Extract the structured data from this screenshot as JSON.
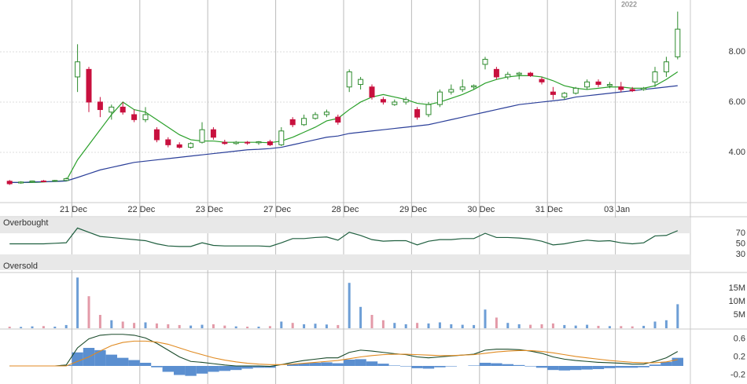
{
  "chart_data": [
    {
      "type": "candlestick",
      "annotation": "2022",
      "open": [
        2.85,
        2.78,
        2.82,
        2.86,
        2.85,
        2.88,
        7.0,
        7.3,
        6.0,
        5.6,
        5.8,
        5.5,
        5.3,
        4.9,
        4.5,
        4.3,
        4.2,
        4.4,
        4.9,
        4.4,
        4.35,
        4.4,
        4.38,
        4.42,
        4.3,
        5.3,
        5.1,
        5.35,
        5.5,
        5.4,
        6.6,
        6.7,
        6.6,
        6.1,
        5.9,
        6.0,
        5.7,
        5.5,
        5.9,
        6.4,
        6.5,
        6.6,
        7.5,
        7.3,
        7.0,
        7.1,
        7.15,
        6.9,
        6.4,
        6.2,
        6.35,
        6.6,
        6.8,
        6.65,
        6.6,
        6.5,
        6.5,
        6.8,
        7.2,
        7.8
      ],
      "high": [
        2.9,
        2.85,
        2.88,
        2.9,
        2.9,
        3.0,
        8.3,
        7.4,
        6.2,
        5.9,
        6.0,
        5.7,
        5.8,
        5.0,
        4.6,
        4.4,
        4.4,
        5.2,
        5.0,
        4.5,
        4.45,
        4.45,
        4.45,
        4.5,
        5.0,
        5.4,
        5.5,
        5.6,
        5.7,
        5.5,
        7.3,
        7.0,
        6.7,
        6.2,
        6.1,
        6.2,
        5.8,
        6.0,
        6.5,
        6.7,
        6.9,
        6.7,
        7.8,
        7.4,
        7.2,
        7.2,
        7.2,
        7.0,
        6.6,
        6.4,
        6.6,
        6.9,
        6.9,
        6.8,
        6.8,
        6.6,
        6.6,
        7.4,
        7.8,
        9.6
      ],
      "low": [
        2.7,
        2.75,
        2.8,
        2.82,
        2.83,
        2.85,
        6.4,
        5.6,
        5.4,
        5.3,
        5.5,
        5.2,
        5.2,
        4.4,
        4.2,
        4.15,
        4.15,
        4.35,
        4.5,
        4.3,
        4.3,
        4.3,
        4.3,
        4.25,
        4.25,
        5.0,
        5.05,
        5.3,
        5.4,
        5.1,
        6.4,
        6.5,
        6.1,
        5.9,
        5.85,
        5.9,
        5.3,
        5.4,
        5.8,
        6.3,
        6.4,
        6.5,
        7.3,
        6.9,
        6.9,
        6.9,
        7.0,
        6.7,
        6.1,
        6.1,
        6.3,
        6.5,
        6.6,
        6.55,
        6.4,
        6.4,
        6.45,
        6.6,
        7.0,
        7.7
      ],
      "close": [
        2.75,
        2.82,
        2.86,
        2.85,
        2.88,
        2.95,
        7.6,
        6.0,
        5.7,
        5.8,
        5.6,
        5.3,
        5.5,
        4.5,
        4.3,
        4.2,
        4.35,
        4.9,
        4.6,
        4.35,
        4.4,
        4.38,
        4.42,
        4.3,
        4.85,
        5.1,
        5.35,
        5.5,
        5.6,
        5.2,
        7.2,
        6.9,
        6.2,
        6.0,
        6.0,
        6.1,
        5.4,
        5.9,
        6.4,
        6.5,
        6.6,
        6.65,
        7.7,
        7.0,
        7.1,
        7.15,
        7.05,
        6.8,
        6.3,
        6.35,
        6.55,
        6.8,
        6.7,
        6.7,
        6.5,
        6.45,
        6.55,
        7.2,
        7.6,
        8.9
      ],
      "up_color": "#2e8b2e",
      "down_color": "#c8103e",
      "series": [
        {
          "color": "#2aa02a",
          "values": [
            2.8,
            2.8,
            2.8,
            2.82,
            2.85,
            2.87,
            3.7,
            4.3,
            4.9,
            5.5,
            6.0,
            5.7,
            5.6,
            5.3,
            5.0,
            4.7,
            4.5,
            4.45,
            4.45,
            4.4,
            4.4,
            4.4,
            4.4,
            4.38,
            4.45,
            4.6,
            4.8,
            5.0,
            5.25,
            5.35,
            5.7,
            6.0,
            6.2,
            6.3,
            6.2,
            6.1,
            5.95,
            5.9,
            6.0,
            6.15,
            6.3,
            6.5,
            6.75,
            6.9,
            7.0,
            7.05,
            7.05,
            7.0,
            6.85,
            6.65,
            6.55,
            6.5,
            6.55,
            6.6,
            6.6,
            6.55,
            6.55,
            6.65,
            6.9,
            7.2
          ]
        },
        {
          "color": "#2b3f99",
          "values": [
            2.8,
            2.8,
            2.82,
            2.83,
            2.84,
            2.86,
            3.0,
            3.15,
            3.3,
            3.4,
            3.5,
            3.6,
            3.65,
            3.7,
            3.75,
            3.8,
            3.85,
            3.9,
            3.95,
            4.0,
            4.05,
            4.1,
            4.12,
            4.15,
            4.2,
            4.3,
            4.4,
            4.5,
            4.6,
            4.65,
            4.75,
            4.8,
            4.85,
            4.9,
            4.95,
            5.0,
            5.05,
            5.1,
            5.2,
            5.3,
            5.4,
            5.5,
            5.6,
            5.7,
            5.8,
            5.9,
            5.95,
            6.0,
            6.05,
            6.1,
            6.2,
            6.25,
            6.3,
            6.35,
            6.4,
            6.45,
            6.5,
            6.55,
            6.6,
            6.65
          ]
        }
      ],
      "xlim": [
        -0.5,
        59.5
      ],
      "xticks": [
        {
          "value": 5.5,
          "label": "21 Dec"
        },
        {
          "value": 11.5,
          "label": "22 Dec"
        },
        {
          "value": 17.5,
          "label": "23 Dec"
        },
        {
          "value": 23.5,
          "label": "27 Dec"
        },
        {
          "value": 29.5,
          "label": "28 Dec"
        },
        {
          "value": 35.5,
          "label": "29 Dec"
        },
        {
          "value": 41.5,
          "label": "30 Dec"
        },
        {
          "value": 47.5,
          "label": "31 Dec"
        },
        {
          "value": 53.5,
          "label": "03 Jan"
        }
      ],
      "ylim": [
        2,
        10.06
      ],
      "yticks": [
        {
          "value": 4,
          "label": "4.00"
        },
        {
          "value": 6,
          "label": "6.00"
        },
        {
          "value": 8,
          "label": "8.00"
        }
      ]
    },
    {
      "type": "line",
      "bands": [
        {
          "label": "Overbought",
          "range": [
            70,
            100
          ]
        },
        {
          "label": "Oversold",
          "range": [
            0,
            30
          ]
        }
      ],
      "series": [
        {
          "color": "#1f5f3f",
          "values": [
            50,
            50,
            50,
            50,
            51,
            52,
            80,
            72,
            64,
            62,
            60,
            58,
            56,
            50,
            46,
            45,
            45,
            52,
            47,
            46,
            46,
            46,
            46,
            45,
            52,
            60,
            60,
            62,
            63,
            57,
            72,
            66,
            58,
            55,
            56,
            56,
            48,
            55,
            58,
            58,
            60,
            60,
            70,
            62,
            62,
            61,
            59,
            55,
            48,
            50,
            54,
            57,
            55,
            56,
            52,
            50,
            52,
            65,
            66,
            75
          ]
        }
      ],
      "ylim": [
        0,
        100
      ],
      "yticks": [
        30,
        50,
        70
      ]
    },
    {
      "type": "bar",
      "values": [
        600000,
        500000,
        700000,
        800000,
        600000,
        1200000,
        19000000,
        12000000,
        5000000,
        3000000,
        2500000,
        2000000,
        2200000,
        1800000,
        1500000,
        1200000,
        1000000,
        1300000,
        1500000,
        1000000,
        700000,
        600000,
        600000,
        800000,
        2500000,
        2000000,
        1500000,
        1700000,
        1400000,
        1200000,
        17000000,
        8000000,
        5000000,
        3000000,
        2000000,
        1500000,
        2000000,
        1800000,
        2200000,
        1500000,
        1300000,
        1200000,
        7000000,
        4000000,
        2000000,
        1500000,
        1300000,
        1500000,
        1800000,
        1200000,
        1000000,
        1300000,
        900000,
        800000,
        800000,
        700000,
        900000,
        2500000,
        3000000,
        9000000
      ],
      "up_color": "#6d9ed6",
      "down_color": "#e39aa8",
      "ylim": [
        0,
        20000000
      ],
      "yticks": [
        {
          "value": 5000000,
          "label": "5M"
        },
        {
          "value": 10000000,
          "label": "10M"
        },
        {
          "value": 15000000,
          "label": "15M"
        }
      ]
    },
    {
      "type": "macd",
      "histogram": {
        "color": "#5b8fd0",
        "values": [
          0,
          0,
          0,
          0,
          0,
          0.02,
          0.3,
          0.4,
          0.35,
          0.25,
          0.18,
          0.13,
          0.07,
          -0.03,
          -0.13,
          -0.2,
          -0.22,
          -0.17,
          -0.13,
          -0.11,
          -0.09,
          -0.06,
          -0.04,
          -0.04,
          0,
          0.04,
          0.06,
          0.07,
          0.08,
          0.06,
          0.14,
          0.15,
          0.1,
          0.05,
          0.01,
          -0.01,
          -0.05,
          -0.06,
          -0.03,
          -0.01,
          0,
          0.01,
          0.07,
          0.06,
          0.04,
          0.02,
          -0.01,
          -0.04,
          -0.09,
          -0.1,
          -0.09,
          -0.08,
          -0.07,
          -0.05,
          -0.04,
          -0.04,
          -0.03,
          0.03,
          0.09,
          0.18
        ]
      },
      "series": [
        {
          "color": "#1a4a2a",
          "values": [
            0,
            0,
            0,
            0,
            0,
            0.02,
            0.4,
            0.6,
            0.68,
            0.7,
            0.7,
            0.68,
            0.62,
            0.5,
            0.35,
            0.2,
            0.1,
            0.08,
            0.05,
            0.02,
            0,
            0,
            0,
            -0.01,
            0.03,
            0.08,
            0.12,
            0.15,
            0.18,
            0.18,
            0.3,
            0.35,
            0.33,
            0.3,
            0.27,
            0.25,
            0.2,
            0.18,
            0.2,
            0.22,
            0.24,
            0.26,
            0.35,
            0.37,
            0.37,
            0.36,
            0.33,
            0.28,
            0.2,
            0.15,
            0.12,
            0.1,
            0.08,
            0.07,
            0.06,
            0.04,
            0.04,
            0.1,
            0.18,
            0.32
          ]
        },
        {
          "color": "#e08a20",
          "values": [
            0,
            0,
            0,
            0,
            0,
            0,
            0.1,
            0.2,
            0.33,
            0.45,
            0.52,
            0.55,
            0.55,
            0.53,
            0.48,
            0.4,
            0.32,
            0.25,
            0.18,
            0.13,
            0.09,
            0.06,
            0.04,
            0.03,
            0.03,
            0.04,
            0.06,
            0.08,
            0.1,
            0.12,
            0.16,
            0.2,
            0.23,
            0.25,
            0.26,
            0.26,
            0.25,
            0.24,
            0.23,
            0.23,
            0.24,
            0.25,
            0.28,
            0.31,
            0.33,
            0.34,
            0.34,
            0.32,
            0.29,
            0.25,
            0.21,
            0.18,
            0.15,
            0.12,
            0.1,
            0.08,
            0.07,
            0.07,
            0.09,
            0.14
          ]
        }
      ],
      "ylim": [
        -0.4,
        0.8
      ],
      "yticks": [
        -0.2,
        0.2,
        0.6
      ]
    }
  ]
}
